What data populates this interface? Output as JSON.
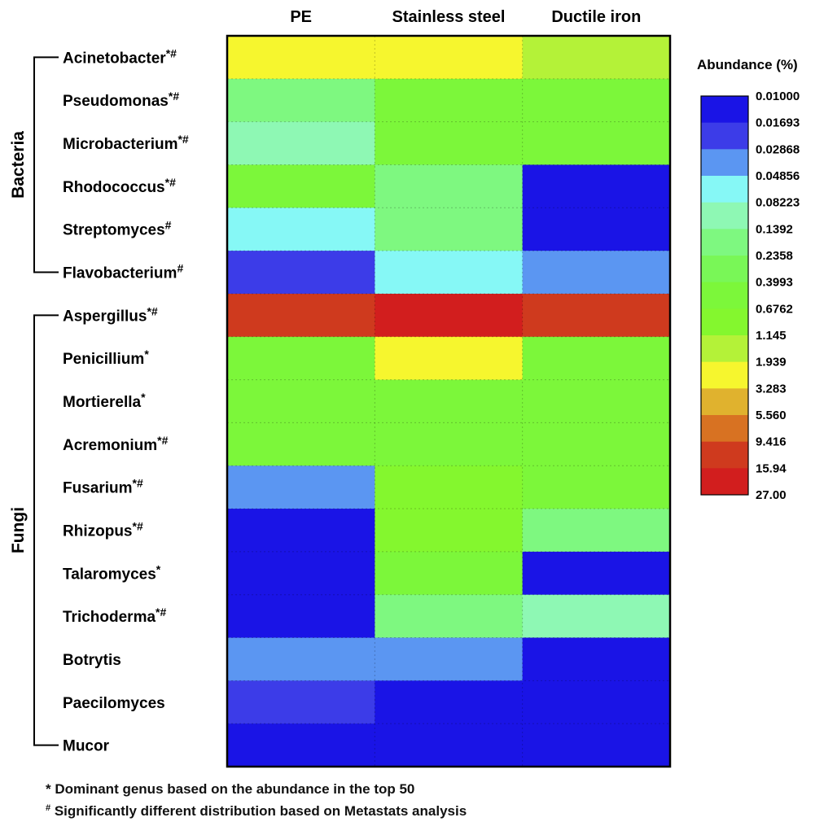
{
  "chart_data": {
    "type": "heatmap",
    "legend": {
      "title": "Abundance (%)",
      "ticks": [
        "0.01000",
        "0.01693",
        "0.02868",
        "0.04856",
        "0.08223",
        "0.1392",
        "0.2358",
        "0.3993",
        "0.6762",
        "1.145",
        "1.939",
        "3.283",
        "5.560",
        "9.416",
        "15.94",
        "27.00"
      ],
      "colors": [
        "#1a14e6",
        "#3c3ce8",
        "#5b96f2",
        "#86f8f6",
        "#8ef8b4",
        "#7ef880",
        "#79f757",
        "#7cf73a",
        "#84f72e",
        "#b4f238",
        "#f6f62e",
        "#e0b22e",
        "#d87222",
        "#cf3a1e",
        "#d21e1e"
      ]
    },
    "columns": [
      "PE",
      "Stainless steel",
      "Ductile iron"
    ],
    "groups": [
      {
        "name": "Bacteria",
        "rows": [
          0,
          5
        ]
      },
      {
        "name": "Fungi",
        "rows": [
          6,
          16
        ]
      }
    ],
    "rows": [
      {
        "genus": "Acinetobacter",
        "mark": "*#",
        "levels": [
          10,
          10,
          9
        ]
      },
      {
        "genus": "Pseudomonas",
        "mark": "*#",
        "levels": [
          5,
          7,
          7
        ]
      },
      {
        "genus": "Microbacterium",
        "mark": "*#",
        "levels": [
          4,
          7,
          7
        ]
      },
      {
        "genus": "Rhodococcus",
        "mark": "*#",
        "levels": [
          7,
          5,
          0
        ]
      },
      {
        "genus": "Streptomyces",
        "mark": "#",
        "levels": [
          3,
          5,
          0
        ]
      },
      {
        "genus": "Flavobacterium",
        "mark": "#",
        "levels": [
          1,
          3,
          2
        ]
      },
      {
        "genus": "Aspergillus",
        "mark": "*#",
        "levels": [
          13,
          14,
          13
        ]
      },
      {
        "genus": "Penicillium",
        "mark": "*",
        "levels": [
          7,
          10,
          7
        ]
      },
      {
        "genus": "Mortierella",
        "mark": "*",
        "levels": [
          7,
          7,
          7
        ]
      },
      {
        "genus": "Acremonium",
        "mark": "*#",
        "levels": [
          7,
          7,
          7
        ]
      },
      {
        "genus": "Fusarium",
        "mark": "*#",
        "levels": [
          2,
          8,
          7
        ]
      },
      {
        "genus": "Rhizopus",
        "mark": "*#",
        "levels": [
          0,
          8,
          5
        ]
      },
      {
        "genus": "Talaromyces",
        "mark": "*",
        "levels": [
          0,
          7,
          0
        ]
      },
      {
        "genus": "Trichoderma",
        "mark": "*#",
        "levels": [
          0,
          5,
          4
        ]
      },
      {
        "genus": "Botrytis",
        "mark": "",
        "levels": [
          2,
          2,
          0
        ]
      },
      {
        "genus": "Paecilomyces",
        "mark": "",
        "levels": [
          1,
          0,
          0
        ]
      },
      {
        "genus": "Mucor",
        "mark": "",
        "levels": [
          0,
          0,
          0
        ]
      }
    ]
  },
  "footnotes": {
    "dominant_symbol": "*",
    "dominant_text": " Dominant genus based on the abundance in the top 50",
    "significant_symbol": "#",
    "significant_text": " Significantly different distribution based on Metastats analysis"
  }
}
